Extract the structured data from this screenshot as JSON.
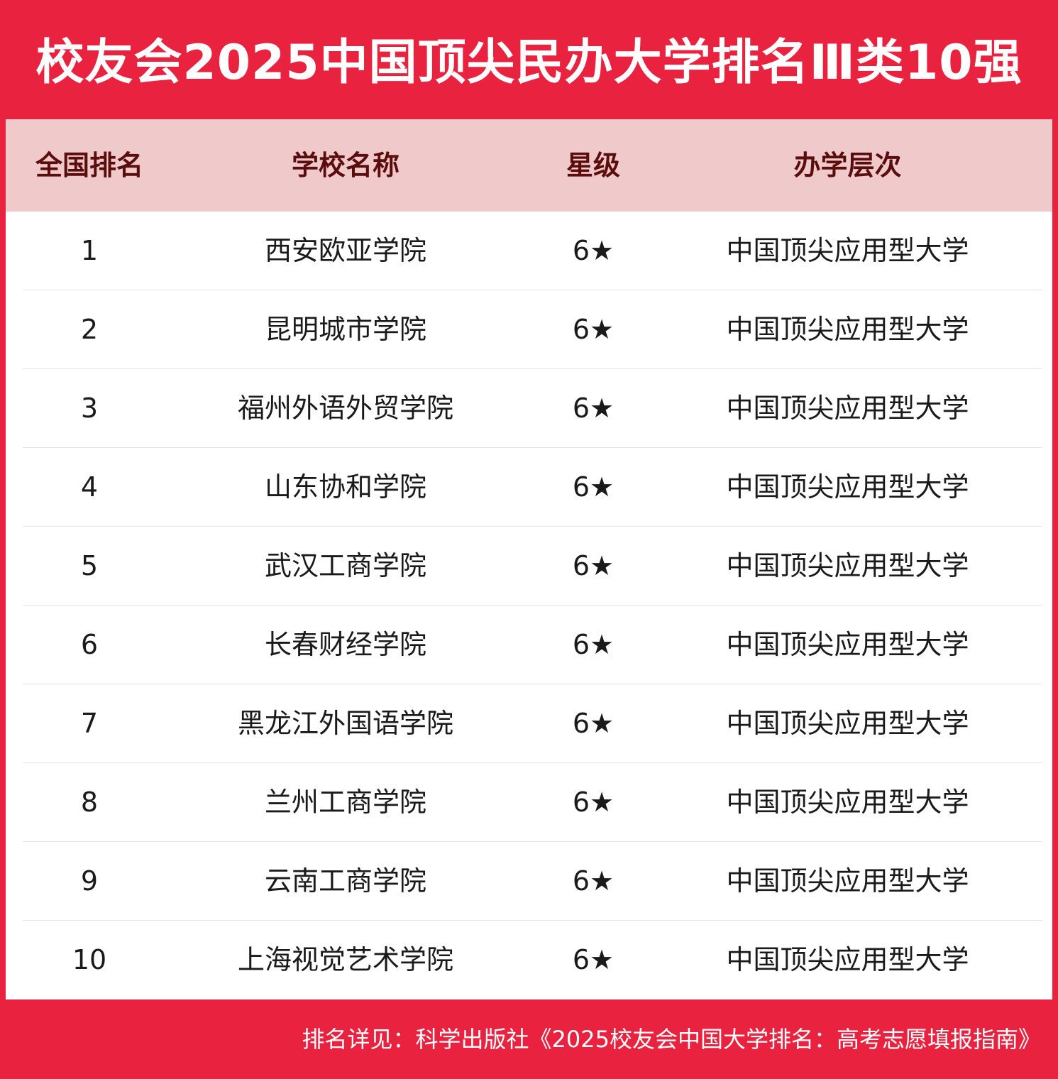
{
  "title": "校友会2025中国顶尖民办大学排名Ⅲ类10强",
  "table": {
    "headers": {
      "rank": "全国排名",
      "name": "学校名称",
      "star": "星级",
      "level": "办学层次"
    },
    "rows": [
      {
        "rank": "1",
        "name": "西安欧亚学院",
        "star": "6★",
        "level": "中国顶尖应用型大学"
      },
      {
        "rank": "2",
        "name": "昆明城市学院",
        "star": "6★",
        "level": "中国顶尖应用型大学"
      },
      {
        "rank": "3",
        "name": "福州外语外贸学院",
        "star": "6★",
        "level": "中国顶尖应用型大学"
      },
      {
        "rank": "4",
        "name": "山东协和学院",
        "star": "6★",
        "level": "中国顶尖应用型大学"
      },
      {
        "rank": "5",
        "name": "武汉工商学院",
        "star": "6★",
        "level": "中国顶尖应用型大学"
      },
      {
        "rank": "6",
        "name": "长春财经学院",
        "star": "6★",
        "level": "中国顶尖应用型大学"
      },
      {
        "rank": "7",
        "name": "黑龙江外国语学院",
        "star": "6★",
        "level": "中国顶尖应用型大学"
      },
      {
        "rank": "8",
        "name": "兰州工商学院",
        "star": "6★",
        "level": "中国顶尖应用型大学"
      },
      {
        "rank": "9",
        "name": "云南工商学院",
        "star": "6★",
        "level": "中国顶尖应用型大学"
      },
      {
        "rank": "10",
        "name": "上海视觉艺术学院",
        "star": "6★",
        "level": "中国顶尖应用型大学"
      }
    ]
  },
  "footer": {
    "source": "排名详见：科学出版社《2025校友会中国大学排名：高考志愿填报指南》"
  },
  "colors": {
    "brand_red": "#e8223f",
    "header_pink": "#f0c9cb",
    "header_text": "#5a0d0d",
    "body_text": "#1a1a1a"
  }
}
